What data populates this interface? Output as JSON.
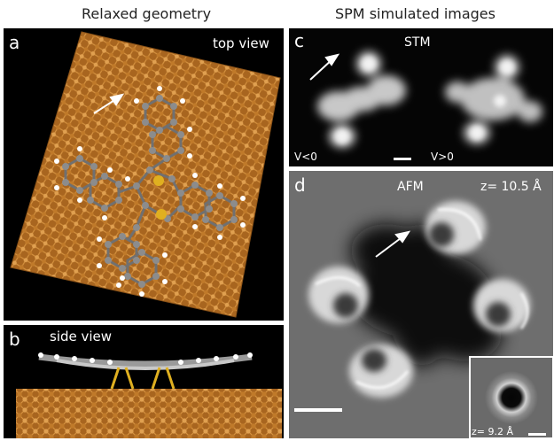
{
  "headers": {
    "left": "Relaxed geometry",
    "right": "SPM simulated images"
  },
  "panel_a": {
    "letter": "a",
    "title": "top view"
  },
  "panel_b": {
    "letter": "b",
    "title": "side view"
  },
  "panel_c": {
    "letter": "c",
    "title": "STM",
    "left_bias": "V<0",
    "right_bias": "V>0"
  },
  "panel_d": {
    "letter": "d",
    "title": "AFM",
    "height": "z= 10.5 Å",
    "inset_height": "z= 9.2 Å"
  },
  "colors": {
    "copper": "#c07a2a",
    "background": "#000000",
    "carbon": "#8a8a8a",
    "sulfur": "#e0b020",
    "hydrogen": "#ffffff"
  }
}
